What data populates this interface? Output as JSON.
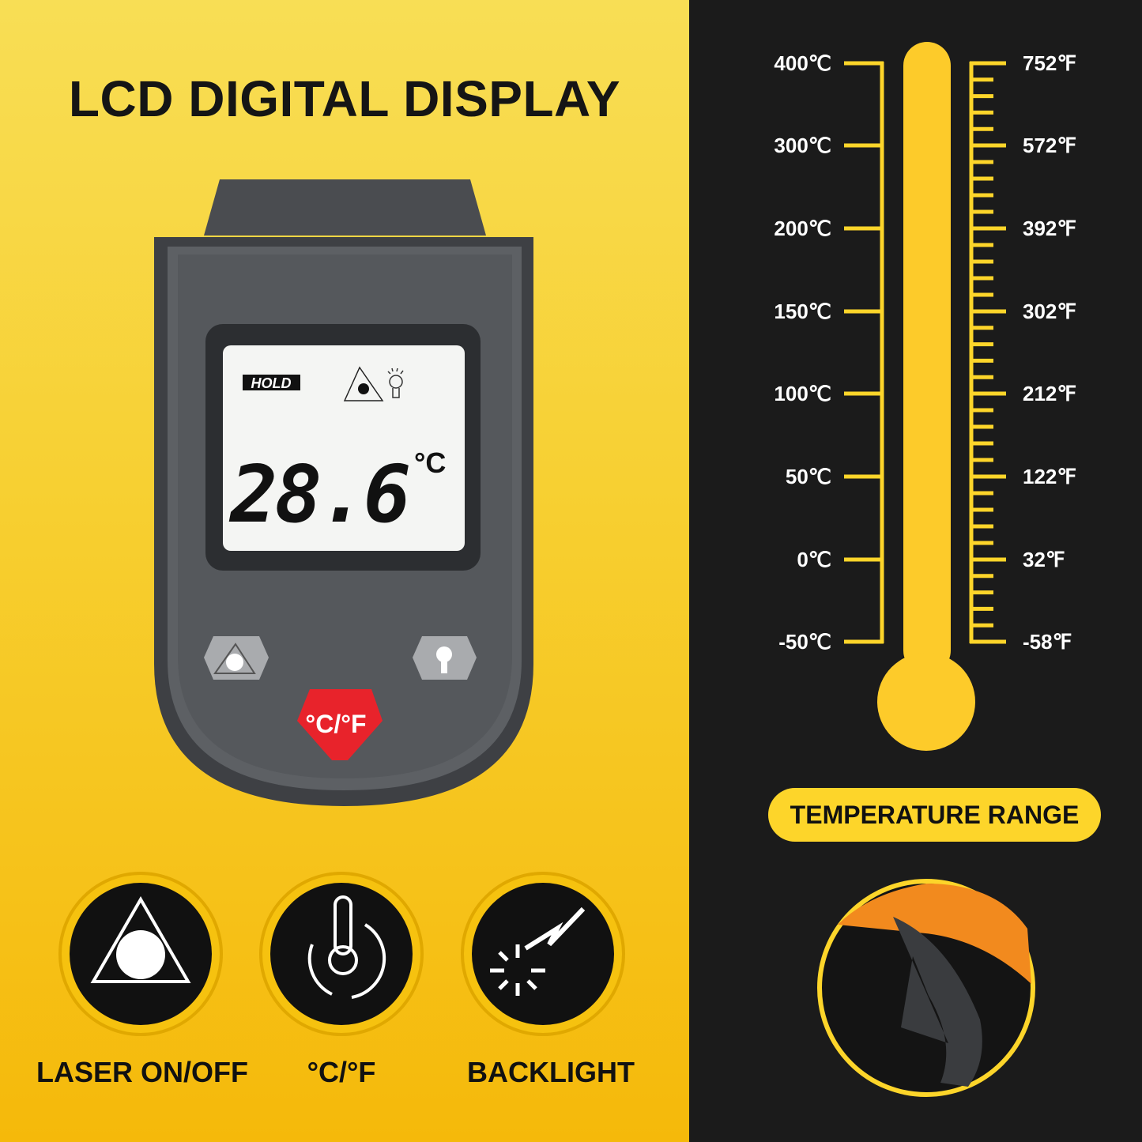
{
  "title": "LCD DIGITAL DISPLAY",
  "device": {
    "lcd": {
      "hold": "HOLD",
      "reading": "28.6",
      "unit": "°C"
    },
    "buttons": {
      "laser": "laser-icon",
      "backlight": "bulb-icon",
      "unit_toggle": "°C/°F"
    }
  },
  "features": [
    {
      "label": "LASER ON/OFF",
      "icon": "laser-triangle-icon"
    },
    {
      "label": "°C/°F",
      "icon": "thermometer-cycle-icon"
    },
    {
      "label": "BACKLIGHT",
      "icon": "backlight-burst-icon"
    }
  ],
  "scale": {
    "celsius": [
      "400℃",
      "300℃",
      "200℃",
      "150℃",
      "100℃",
      "50℃",
      "0℃",
      "-50℃"
    ],
    "fahrenheit": [
      "752℉",
      "572℉",
      "392℉",
      "302℉",
      "212℉",
      "122℉",
      "32℉",
      "-58℉"
    ]
  },
  "range_label": "TEMPERATURE RANGE",
  "colors": {
    "yellow": "#fdd52a",
    "dark": "#1b1b1b",
    "red_button": "#e8232b"
  }
}
